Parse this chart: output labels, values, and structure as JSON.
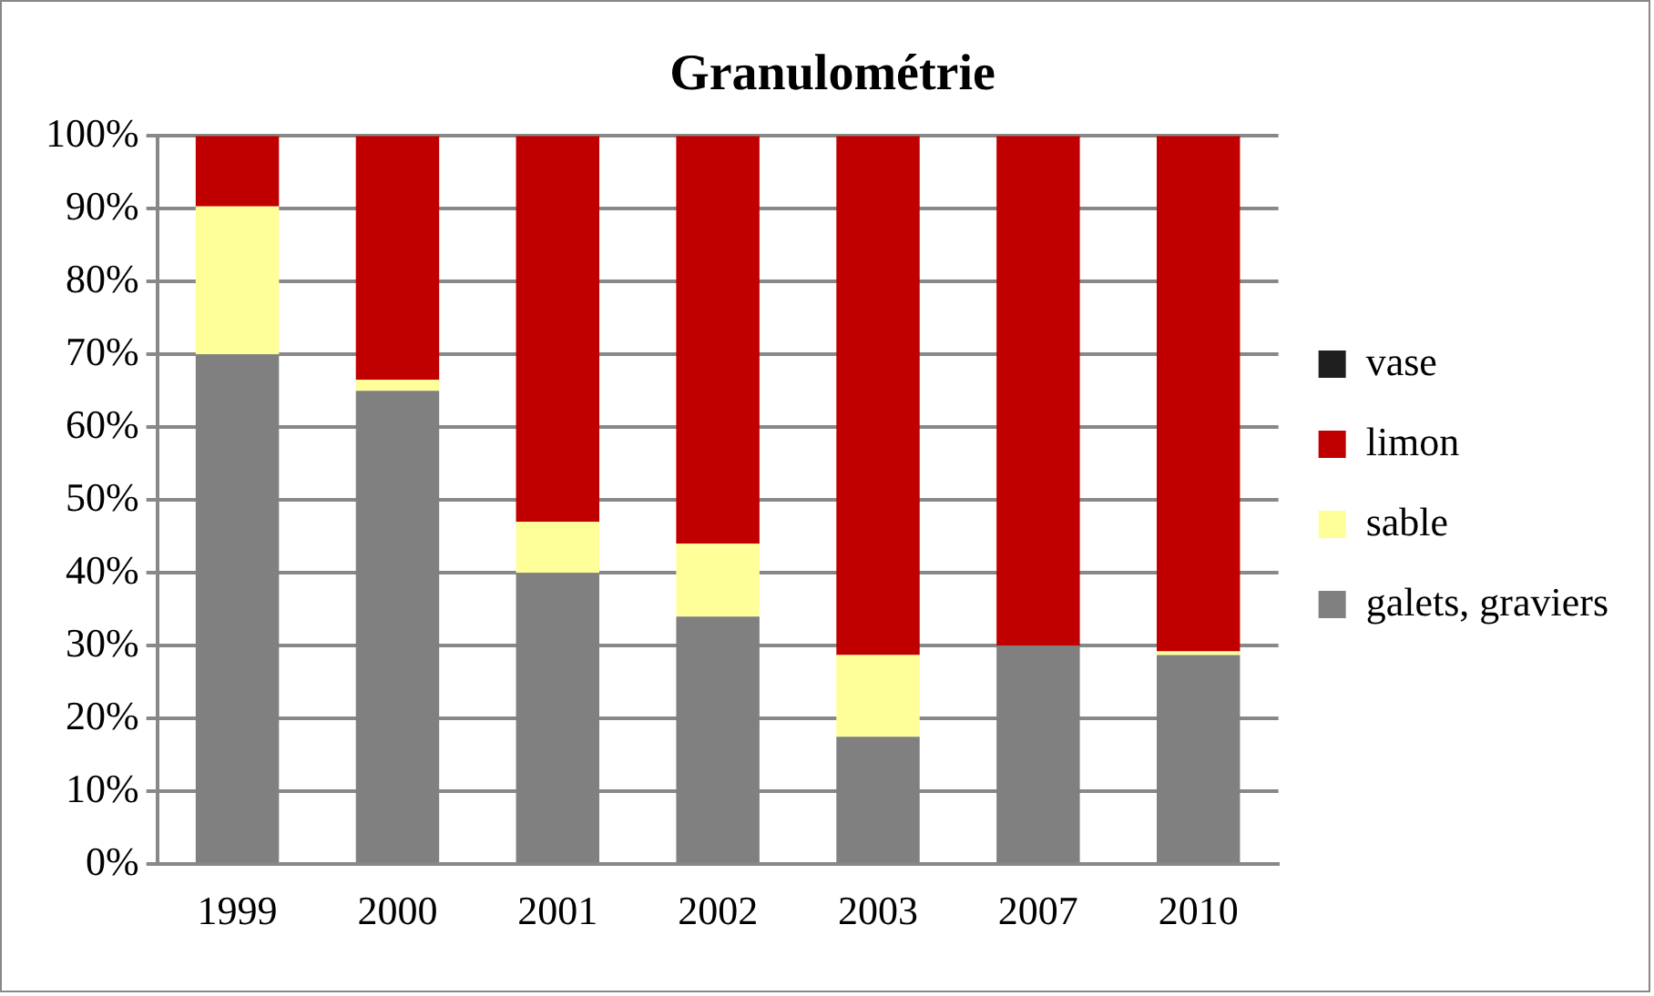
{
  "chart_data": {
    "type": "bar",
    "title": "Granulométrie",
    "stacked": true,
    "categories": [
      "1999",
      "2000",
      "2001",
      "2002",
      "2003",
      "2007",
      "2010"
    ],
    "series": [
      {
        "name": "galets, graviers",
        "color": "#808080",
        "values": [
          70,
          65,
          40,
          34,
          17.5,
          30,
          28.7
        ]
      },
      {
        "name": "sable",
        "color": "#ffff99",
        "values": [
          20.3,
          1.5,
          7,
          10,
          11.2,
          0,
          0.5
        ]
      },
      {
        "name": "limon",
        "color": "#c00000",
        "values": [
          9.7,
          33.5,
          53,
          56,
          71.3,
          70,
          70.8
        ]
      },
      {
        "name": "vase",
        "color": "#1f1f1f",
        "values": [
          0,
          0,
          0,
          0,
          0,
          0,
          0
        ]
      }
    ],
    "ylim": [
      0,
      100
    ],
    "yticks": [
      {
        "value": 0,
        "label": "0%"
      },
      {
        "value": 10,
        "label": "10%"
      },
      {
        "value": 20,
        "label": "20%"
      },
      {
        "value": 30,
        "label": "30%"
      },
      {
        "value": 40,
        "label": "40%"
      },
      {
        "value": 50,
        "label": "50%"
      },
      {
        "value": 60,
        "label": "60%"
      },
      {
        "value": 70,
        "label": "70%"
      },
      {
        "value": 80,
        "label": "80%"
      },
      {
        "value": 90,
        "label": "90%"
      },
      {
        "value": 100,
        "label": "100%"
      }
    ],
    "grid": "y",
    "legend": "right"
  }
}
